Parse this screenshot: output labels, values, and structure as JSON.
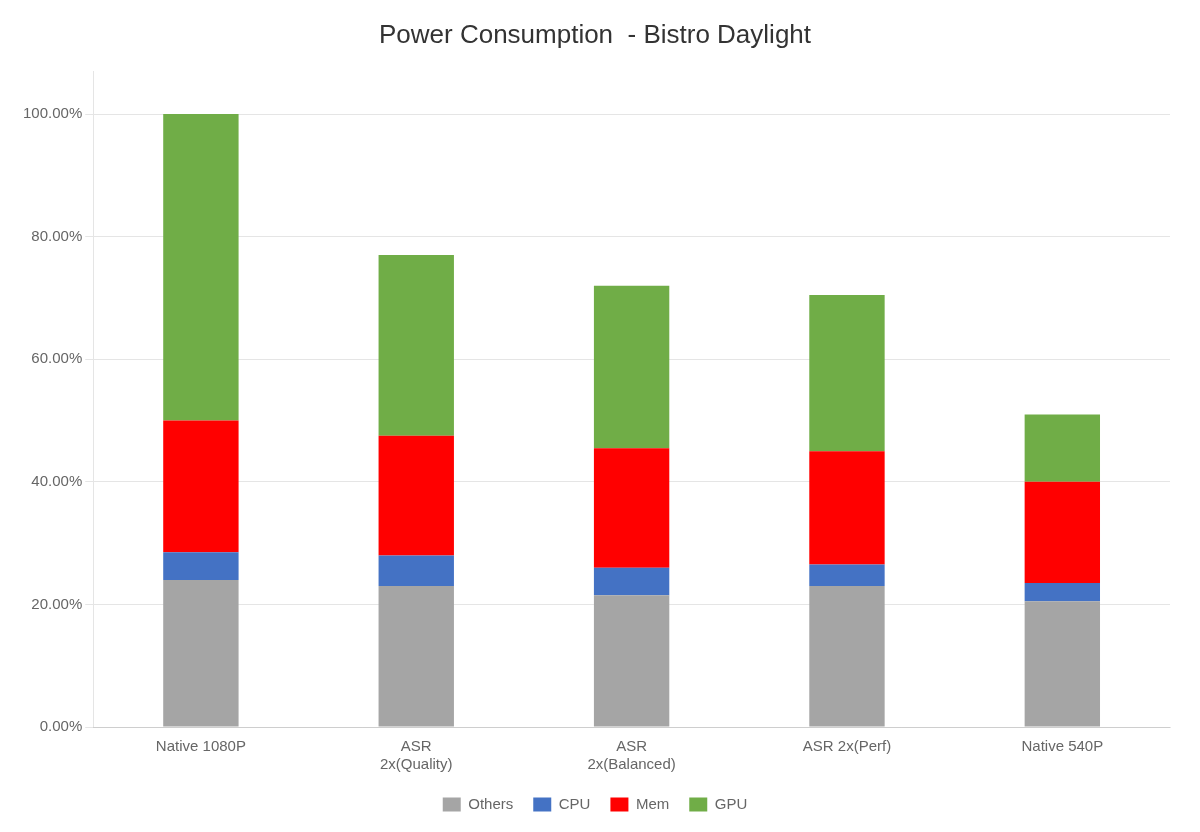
{
  "chart_data": {
    "type": "bar",
    "title": "Power Consumption  - Bistro Daylight",
    "categories": [
      "Native 1080P",
      "ASR\n2x(Quality)",
      "ASR\n2x(Balanced)",
      "ASR 2x(Perf)",
      "Native 540P"
    ],
    "series": [
      {
        "name": "Others",
        "color": "#A5A5A5",
        "values": [
          24.0,
          23.0,
          21.5,
          23.0,
          20.5
        ]
      },
      {
        "name": "CPU",
        "color": "#4472C4",
        "values": [
          4.5,
          5.0,
          4.5,
          3.5,
          3.0
        ]
      },
      {
        "name": "Mem",
        "color": "#FF0000",
        "values": [
          21.5,
          19.5,
          19.5,
          18.5,
          16.5
        ]
      },
      {
        "name": "GPU",
        "color": "#70AD47",
        "values": [
          50.0,
          29.5,
          26.5,
          25.5,
          11.0
        ]
      }
    ],
    "stacked": true,
    "ylim": [
      0,
      107
    ],
    "yticks": [
      {
        "value": 0,
        "label": "0.00%"
      },
      {
        "value": 20,
        "label": "20.00%"
      },
      {
        "value": 40,
        "label": "40.00%"
      },
      {
        "value": 60,
        "label": "60.00%"
      },
      {
        "value": 80,
        "label": "80.00%"
      },
      {
        "value": 100,
        "label": "100.00%"
      }
    ],
    "grid": true,
    "legend": "bottom"
  }
}
